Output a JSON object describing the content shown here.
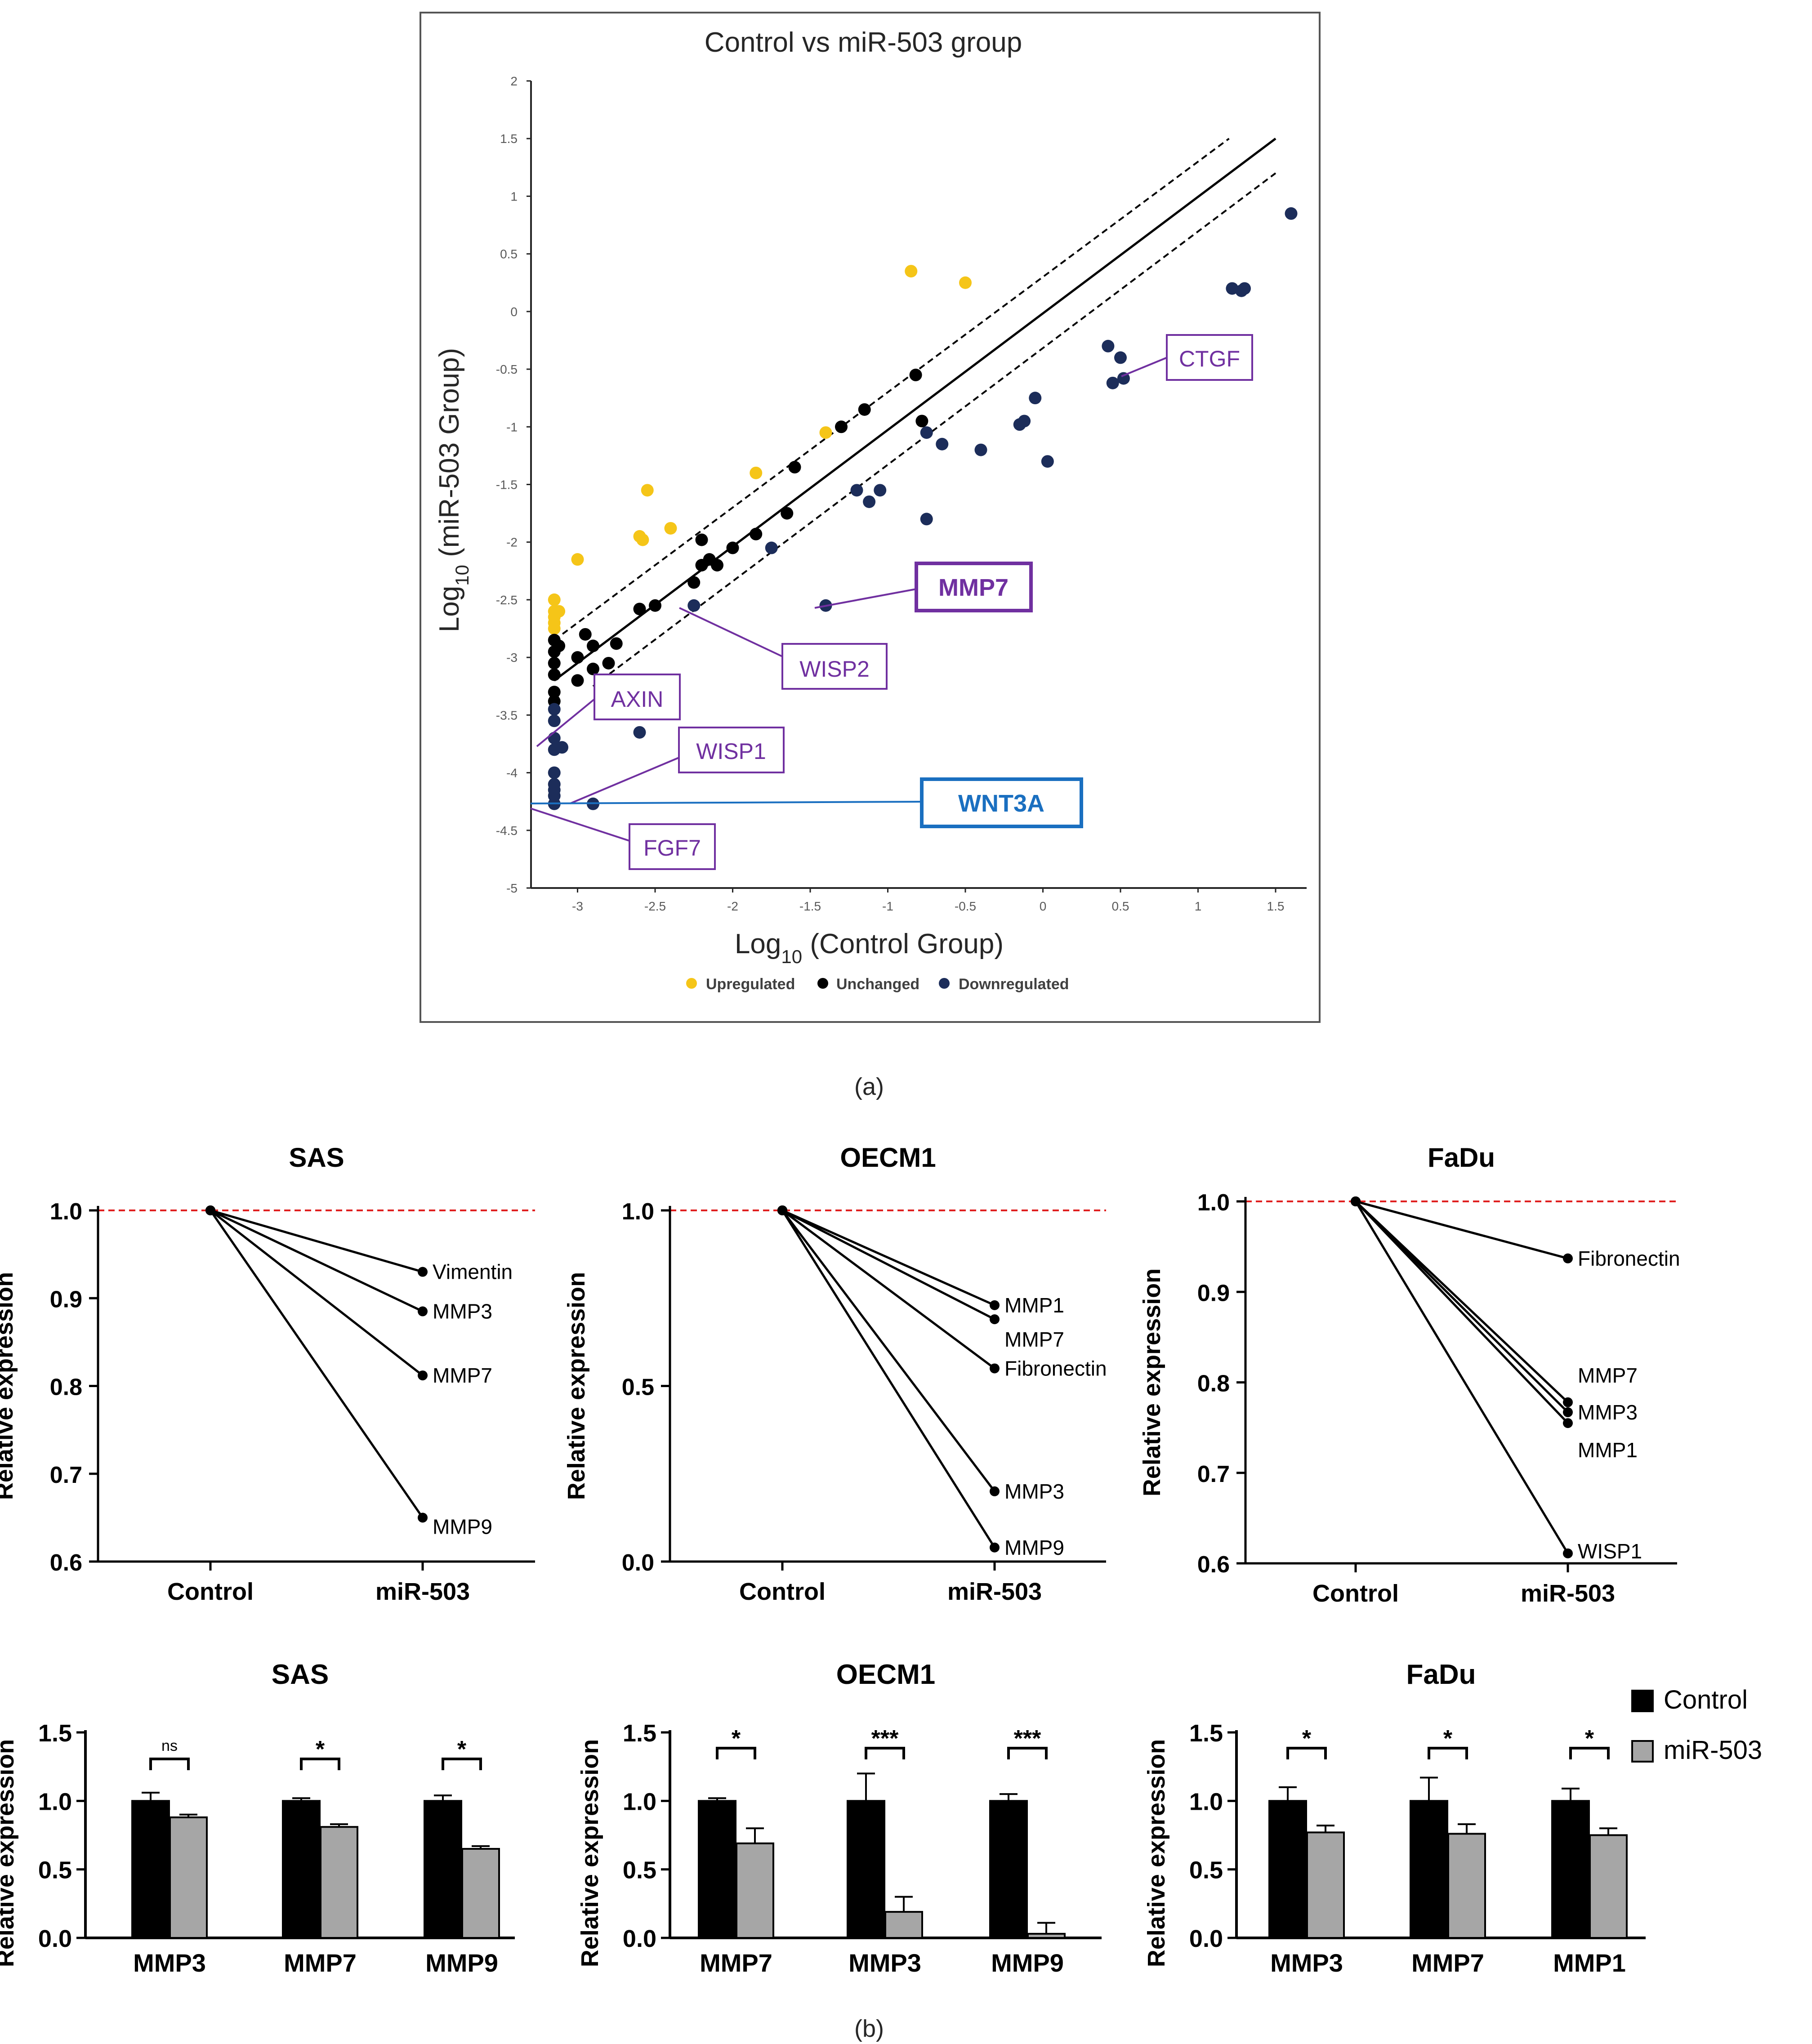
{
  "panel_labels": {
    "a": "(a)",
    "b": "(b)"
  },
  "colors": {
    "up": "#f5c518",
    "unchanged": "#000000",
    "down": "#1c2d5a",
    "label": "#7030a0",
    "wnt": "#1a6fc0",
    "ref": "#e02020",
    "control_bar": "#000000",
    "mir_bar": "#a6a6a6"
  },
  "chart_data": [
    {
      "id": "scatter",
      "type": "scatter",
      "title": "Control vs miR-503 group",
      "xlabel": "Log10 (Control Group)",
      "ylabel": "Log10 (miR-503 Group)",
      "xlabel_parts": [
        "Log",
        "10",
        " (Control Group)"
      ],
      "ylabel_parts": [
        "Log",
        "10",
        " (miR-503 Group)"
      ],
      "xlim": [
        -3.3,
        1.7
      ],
      "ylim": [
        -5,
        2
      ],
      "xticks": [
        -3,
        -2.5,
        -2,
        -1.5,
        -1,
        -0.5,
        0,
        0.5,
        1,
        1.5
      ],
      "yticks": [
        2,
        1.5,
        1,
        0.5,
        0,
        -0.5,
        -1,
        -1.5,
        -2,
        -2.5,
        -3,
        -3.5,
        -4,
        -4.5,
        -5
      ],
      "legend": [
        {
          "name": "Upregulated",
          "color": "#f5c518"
        },
        {
          "name": "Unchanged",
          "color": "#000000"
        },
        {
          "name": "Downregulated",
          "color": "#1c2d5a"
        }
      ],
      "lines": [
        {
          "name": "identity",
          "style": "solid",
          "x": [
            -3.15,
            1.5
          ],
          "y": [
            -3.2,
            1.5
          ]
        },
        {
          "name": "upper-bound",
          "style": "dashed",
          "x": [
            -3.15,
            1.2
          ],
          "y": [
            -2.85,
            1.5
          ]
        },
        {
          "name": "lower-bound",
          "style": "dashed",
          "x": [
            -2.9,
            1.5
          ],
          "y": [
            -3.25,
            1.2
          ]
        }
      ],
      "series": [
        {
          "name": "Upregulated",
          "points": [
            [
              -3.15,
              -2.5
            ],
            [
              -3.15,
              -2.6
            ],
            [
              -3.15,
              -2.65
            ],
            [
              -3.15,
              -2.7
            ],
            [
              -3.15,
              -2.75
            ],
            [
              -3.12,
              -2.6
            ],
            [
              -3.0,
              -2.15
            ],
            [
              -2.6,
              -1.95
            ],
            [
              -2.58,
              -1.98
            ],
            [
              -2.55,
              -1.55
            ],
            [
              -2.4,
              -1.88
            ],
            [
              -1.85,
              -1.4
            ],
            [
              -1.4,
              -1.05
            ],
            [
              -0.85,
              0.35
            ],
            [
              -0.5,
              0.25
            ]
          ]
        },
        {
          "name": "Unchanged",
          "points": [
            [
              -3.15,
              -2.85
            ],
            [
              -3.15,
              -2.95
            ],
            [
              -3.15,
              -3.05
            ],
            [
              -3.15,
              -3.15
            ],
            [
              -3.15,
              -3.3
            ],
            [
              -3.15,
              -3.38
            ],
            [
              -3.12,
              -2.9
            ],
            [
              -3.0,
              -3.0
            ],
            [
              -3.0,
              -3.2
            ],
            [
              -2.95,
              -2.8
            ],
            [
              -2.9,
              -2.9
            ],
            [
              -2.9,
              -3.1
            ],
            [
              -2.8,
              -3.05
            ],
            [
              -2.75,
              -2.88
            ],
            [
              -2.6,
              -2.58
            ],
            [
              -2.5,
              -2.55
            ],
            [
              -2.25,
              -2.35
            ],
            [
              -2.2,
              -2.2
            ],
            [
              -2.15,
              -2.15
            ],
            [
              -2.1,
              -2.2
            ],
            [
              -2.0,
              -2.05
            ],
            [
              -2.2,
              -1.98
            ],
            [
              -1.85,
              -1.93
            ],
            [
              -1.65,
              -1.75
            ],
            [
              -1.6,
              -1.35
            ],
            [
              -1.3,
              -1.0
            ],
            [
              -1.15,
              -0.85
            ],
            [
              -0.82,
              -0.55
            ],
            [
              -0.78,
              -0.95
            ]
          ]
        },
        {
          "name": "Downregulated",
          "points": [
            [
              -3.15,
              -3.45
            ],
            [
              -3.15,
              -3.55
            ],
            [
              -3.15,
              -3.7
            ],
            [
              -3.15,
              -3.8
            ],
            [
              -3.15,
              -4.0
            ],
            [
              -3.15,
              -4.1
            ],
            [
              -3.15,
              -4.15
            ],
            [
              -3.15,
              -4.2
            ],
            [
              -3.15,
              -4.27
            ],
            [
              -3.1,
              -3.78
            ],
            [
              -2.9,
              -4.27
            ],
            [
              -2.6,
              -3.65
            ],
            [
              -2.25,
              -2.55
            ],
            [
              -1.75,
              -2.05
            ],
            [
              -1.4,
              -2.55
            ],
            [
              -1.2,
              -1.55
            ],
            [
              -1.12,
              -1.65
            ],
            [
              -1.05,
              -1.55
            ],
            [
              -0.75,
              -1.05
            ],
            [
              -0.75,
              -1.8
            ],
            [
              -0.65,
              -1.15
            ],
            [
              -0.4,
              -1.2
            ],
            [
              -0.15,
              -0.98
            ],
            [
              -0.12,
              -0.95
            ],
            [
              -0.05,
              -0.75
            ],
            [
              0.03,
              -1.3
            ],
            [
              0.42,
              -0.3
            ],
            [
              0.45,
              -0.62
            ],
            [
              0.5,
              -0.4
            ],
            [
              0.52,
              -0.58
            ],
            [
              1.22,
              0.2
            ],
            [
              1.28,
              0.18
            ],
            [
              1.3,
              0.2
            ],
            [
              1.6,
              0.85
            ]
          ]
        }
      ],
      "annotations": [
        {
          "text": "CTGF",
          "x": 0.52,
          "y": -0.58
        },
        {
          "text": "MMP7",
          "x": -1.4,
          "y": -2.55
        },
        {
          "text": "WISP2",
          "x": -2.25,
          "y": -2.55
        },
        {
          "text": "AXIN",
          "x": -3.1,
          "y": -3.78
        },
        {
          "text": "WISP1",
          "x": -2.9,
          "y": -4.27
        },
        {
          "text": "WNT3A",
          "x": -3.15,
          "y": -4.25
        },
        {
          "text": "FGF7",
          "x": -3.15,
          "y": -4.27
        }
      ]
    },
    {
      "id": "line-SAS",
      "type": "line",
      "title": "SAS",
      "ylabel": "Relative expression",
      "categories": [
        "Control",
        "miR-503"
      ],
      "ylim": [
        0.6,
        1.0
      ],
      "yticks": [
        1.0,
        0.9,
        0.8,
        0.7,
        0.6
      ],
      "series": [
        {
          "name": "Vimentin",
          "values": [
            1.0,
            0.93
          ]
        },
        {
          "name": "MMP3",
          "values": [
            1.0,
            0.885
          ]
        },
        {
          "name": "MMP7",
          "values": [
            1.0,
            0.812
          ]
        },
        {
          "name": "MMP9",
          "values": [
            1.0,
            0.65
          ]
        }
      ]
    },
    {
      "id": "line-OECM1",
      "type": "line",
      "title": "OECM1",
      "ylabel": "Relative expression",
      "categories": [
        "Control",
        "miR-503"
      ],
      "ylim": [
        0.0,
        1.0
      ],
      "yticks": [
        1.0,
        0.5,
        0.0
      ],
      "series": [
        {
          "name": "MMP1",
          "values": [
            1.0,
            0.73
          ]
        },
        {
          "name": "MMP7",
          "values": [
            1.0,
            0.69
          ]
        },
        {
          "name": "Fibronectin",
          "values": [
            1.0,
            0.55
          ]
        },
        {
          "name": "MMP3",
          "values": [
            1.0,
            0.2
          ]
        },
        {
          "name": "MMP9",
          "values": [
            1.0,
            0.04
          ]
        }
      ]
    },
    {
      "id": "line-FaDu",
      "type": "line",
      "title": "FaDu",
      "ylabel": "Relative expression",
      "categories": [
        "Control",
        "miR-503"
      ],
      "ylim": [
        0.6,
        1.0
      ],
      "yticks": [
        1.0,
        0.9,
        0.8,
        0.7,
        0.6
      ],
      "series": [
        {
          "name": "Fibronectin",
          "values": [
            1.0,
            0.937
          ]
        },
        {
          "name": "MMP7",
          "values": [
            1.0,
            0.778
          ]
        },
        {
          "name": "MMP3",
          "values": [
            1.0,
            0.767
          ]
        },
        {
          "name": "MMP1",
          "values": [
            1.0,
            0.755
          ]
        },
        {
          "name": "WISP1",
          "values": [
            1.0,
            0.611
          ]
        }
      ]
    },
    {
      "id": "bar-SAS",
      "type": "bar",
      "title": "SAS",
      "ylabel": "Relative expression",
      "categories": [
        "MMP3",
        "MMP7",
        "MMP9"
      ],
      "ylim": [
        0.0,
        1.5
      ],
      "yticks": [
        1.5,
        1.0,
        0.5,
        0.0
      ],
      "series": [
        {
          "name": "Control",
          "values": [
            1.0,
            1.0,
            1.0
          ],
          "errors": [
            0.06,
            0.02,
            0.04
          ]
        },
        {
          "name": "miR-503",
          "values": [
            0.88,
            0.81,
            0.65
          ],
          "errors": [
            0.02,
            0.02,
            0.02
          ]
        }
      ],
      "significance": [
        "ns",
        "*",
        "*"
      ]
    },
    {
      "id": "bar-OECM1",
      "type": "bar",
      "title": "OECM1",
      "ylabel": "Relative expression",
      "categories": [
        "MMP7",
        "MMP3",
        "MMP9"
      ],
      "ylim": [
        0.0,
        1.5
      ],
      "yticks": [
        1.5,
        1.0,
        0.5,
        0.0
      ],
      "series": [
        {
          "name": "Control",
          "values": [
            1.0,
            1.0,
            1.0
          ],
          "errors": [
            0.02,
            0.2,
            0.05
          ]
        },
        {
          "name": "miR-503",
          "values": [
            0.69,
            0.19,
            0.03
          ],
          "errors": [
            0.11,
            0.11,
            0.08
          ]
        }
      ],
      "significance": [
        "*",
        "***",
        "***"
      ]
    },
    {
      "id": "bar-FaDu",
      "type": "bar",
      "title": "FaDu",
      "ylabel": "Relative expression",
      "categories": [
        "MMP3",
        "MMP7",
        "MMP1"
      ],
      "ylim": [
        0.0,
        1.5
      ],
      "yticks": [
        1.5,
        1.0,
        0.5,
        0.0
      ],
      "series": [
        {
          "name": "Control",
          "values": [
            1.0,
            1.0,
            1.0
          ],
          "errors": [
            0.1,
            0.17,
            0.09
          ]
        },
        {
          "name": "miR-503",
          "values": [
            0.77,
            0.76,
            0.75
          ],
          "errors": [
            0.05,
            0.07,
            0.05
          ]
        }
      ],
      "significance": [
        "*",
        "*",
        "*"
      ]
    }
  ],
  "bar_legend": [
    {
      "name": "Control",
      "color": "#000000"
    },
    {
      "name": "miR-503",
      "color": "#a6a6a6"
    }
  ]
}
